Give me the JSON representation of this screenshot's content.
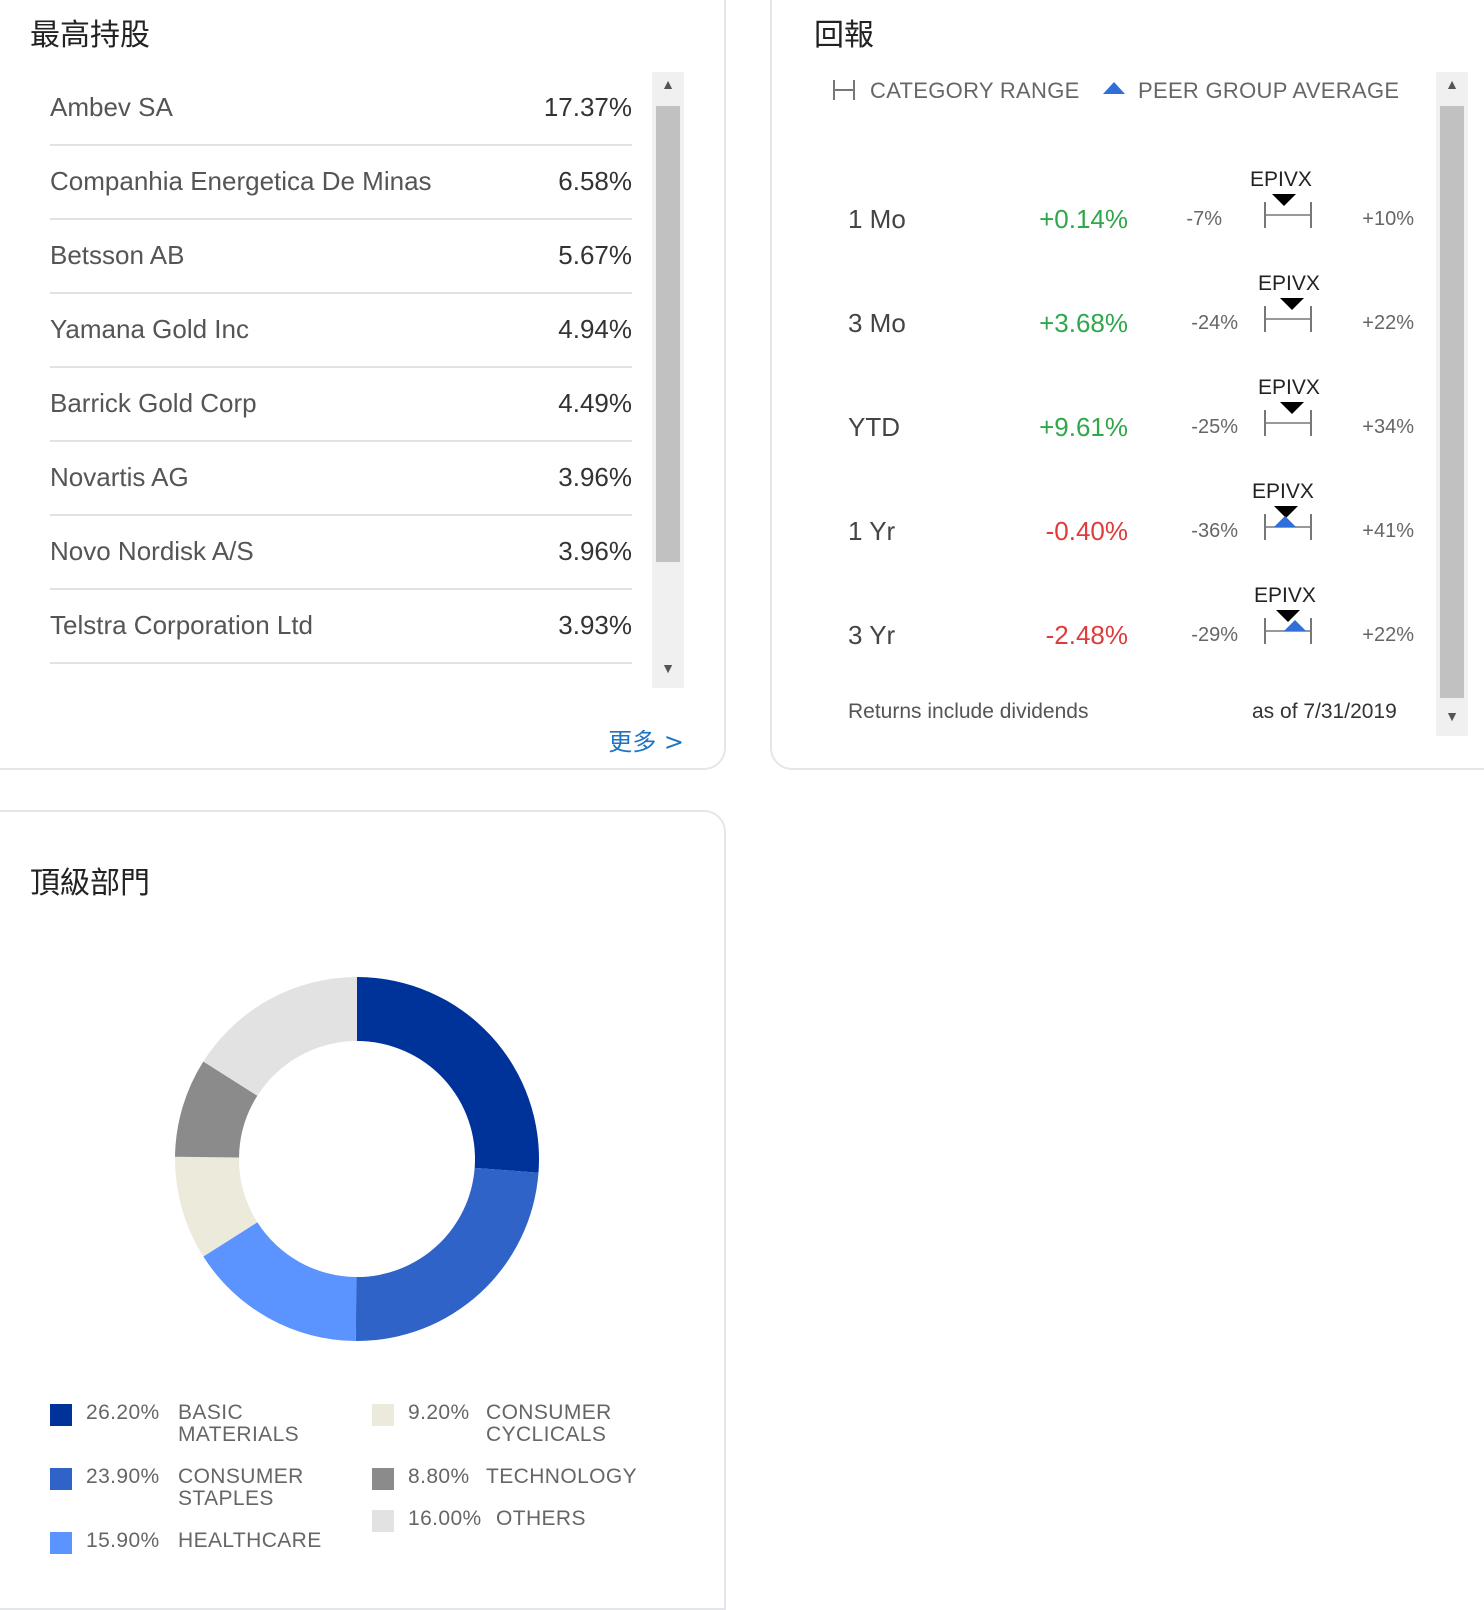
{
  "holdings": {
    "title": "最高持股",
    "items": [
      {
        "name": "Ambev SA",
        "pct": "17.37%"
      },
      {
        "name": "Companhia Energetica De Minas",
        "pct": "6.58%"
      },
      {
        "name": "Betsson AB",
        "pct": "5.67%"
      },
      {
        "name": "Yamana Gold Inc",
        "pct": "4.94%"
      },
      {
        "name": "Barrick Gold Corp",
        "pct": "4.49%"
      },
      {
        "name": "Novartis AG",
        "pct": "3.96%"
      },
      {
        "name": "Novo Nordisk A/S",
        "pct": "3.96%"
      },
      {
        "name": "Telstra Corporation Ltd",
        "pct": "3.93%"
      }
    ],
    "more_label": "更多 >"
  },
  "returns": {
    "title": "回報",
    "legend_range": "CATEGORY RANGE",
    "legend_peer": "PEER GROUP AVERAGE",
    "rows": [
      {
        "period": "1 Mo",
        "value": "+0.14%",
        "sign": "pos",
        "low": "-7%",
        "high": "+10%",
        "ticker": "EPIVX",
        "peer": false
      },
      {
        "period": "3 Mo",
        "value": "+3.68%",
        "sign": "pos",
        "low": "-24%",
        "high": "+22%",
        "ticker": "EPIVX",
        "peer": false
      },
      {
        "period": "YTD",
        "value": "+9.61%",
        "sign": "pos",
        "low": "-25%",
        "high": "+34%",
        "ticker": "EPIVX",
        "peer": false
      },
      {
        "period": "1 Yr",
        "value": "-0.40%",
        "sign": "neg",
        "low": "-36%",
        "high": "+41%",
        "ticker": "EPIVX",
        "peer": true
      },
      {
        "period": "3 Yr",
        "value": "-2.48%",
        "sign": "neg",
        "low": "-29%",
        "high": "+22%",
        "ticker": "EPIVX",
        "peer": true
      }
    ],
    "footnote": "Returns include dividends",
    "as_of": "as of 7/31/2019"
  },
  "sectors": {
    "title": "頂級部門",
    "chart_data": {
      "type": "pie",
      "categories": [
        "BASIC MATERIALS",
        "CONSUMER STAPLES",
        "HEALTHCARE",
        "CONSUMER CYCLICALS",
        "TECHNOLOGY",
        "OTHERS"
      ],
      "values": [
        26.2,
        23.9,
        15.9,
        9.2,
        8.8,
        16.0
      ],
      "colors": [
        "#00339a",
        "#2f63c8",
        "#5b93ff",
        "#eceadb",
        "#8b8b8b",
        "#e2e2e2"
      ],
      "labels": [
        {
          "pct": "26.20%",
          "name1": "BASIC",
          "name2": "MATERIALS"
        },
        {
          "pct": "23.90%",
          "name1": "CONSUMER",
          "name2": "STAPLES"
        },
        {
          "pct": "15.90%",
          "name1": "HEALTHCARE",
          "name2": ""
        },
        {
          "pct": "9.20%",
          "name1": "CONSUMER",
          "name2": "CYCLICALS"
        },
        {
          "pct": "8.80%",
          "name1": "TECHNOLOGY",
          "name2": ""
        },
        {
          "pct": "16.00%",
          "name1": "OTHERS",
          "name2": ""
        }
      ]
    }
  }
}
